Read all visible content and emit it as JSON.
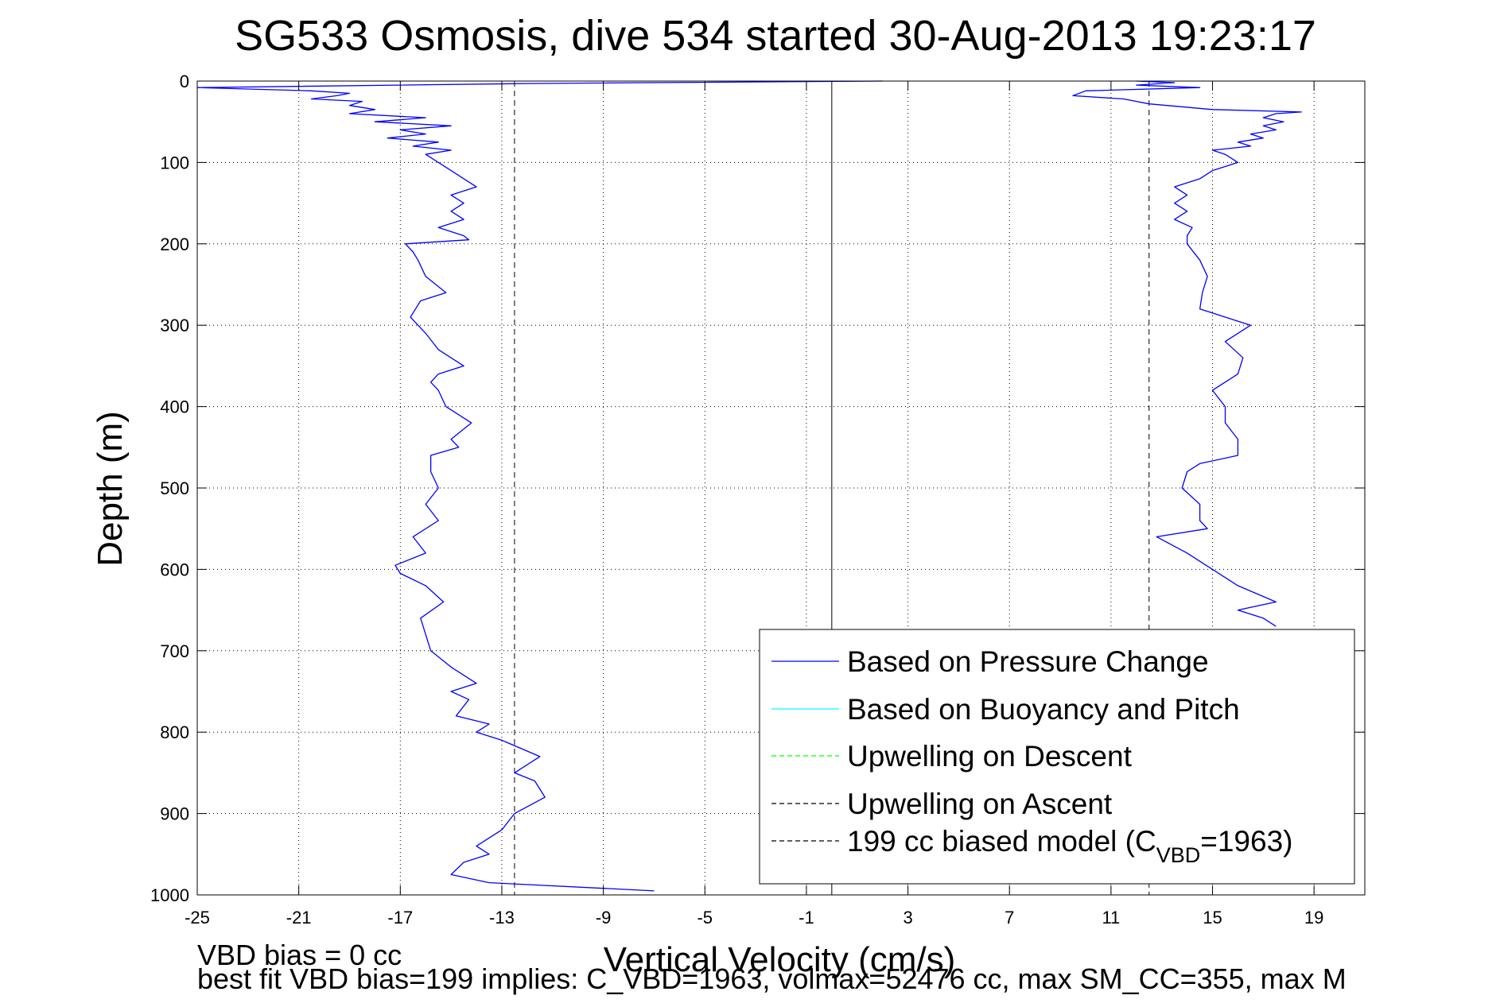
{
  "chart_data": {
    "type": "line",
    "title": "SG533 Osmosis, dive 534 started 30-Aug-2013 19:23:17",
    "xlabel": "Vertical Velocity (cm/s)",
    "ylabel": "Depth (m)",
    "xlim": [
      -25,
      21
    ],
    "ylim": [
      0,
      1000
    ],
    "y_reversed": true,
    "grid": true,
    "xticks": [
      -25,
      -21,
      -17,
      -13,
      -9,
      -5,
      -1,
      3,
      7,
      11,
      15,
      19
    ],
    "yticks": [
      0,
      100,
      200,
      300,
      400,
      500,
      600,
      700,
      800,
      900,
      1000
    ],
    "legend_position": "bottom-right",
    "legend": [
      {
        "label": "Based on Pressure Change",
        "color": "#0000ff",
        "dash": "solid"
      },
      {
        "label": "Based on Buoyancy and Pitch",
        "color": "#00ffff",
        "dash": "solid"
      },
      {
        "label": "Upwelling on Descent",
        "color": "#00ff00",
        "dash": "dashed"
      },
      {
        "label": "Upwelling on Ascent",
        "color": "#000000",
        "dash": "dashed"
      },
      {
        "label": "199 cc biased model (C",
        "sub": "VBD",
        "suffix": "=1963)",
        "color": "#000000",
        "dash": "dashed"
      }
    ],
    "reference_lines": [
      {
        "x": -12.5,
        "style": "dashed",
        "color": "#000000"
      },
      {
        "x": 0.0,
        "style": "solid",
        "color": "#000000"
      },
      {
        "x": 12.5,
        "style": "dashed",
        "color": "#000000"
      }
    ],
    "series": [
      {
        "name": "Based on Pressure Change",
        "color": "#0000ff",
        "segment": "descent",
        "depth": [
          0,
          3,
          8,
          12,
          15,
          18,
          22,
          25,
          30,
          35,
          40,
          45,
          50,
          55,
          60,
          65,
          70,
          75,
          80,
          85,
          90,
          100,
          110,
          120,
          130,
          140,
          150,
          160,
          170,
          180,
          190,
          195,
          200,
          210,
          220,
          240,
          260,
          270,
          280,
          290,
          300,
          310,
          330,
          350,
          360,
          370,
          380,
          400,
          420,
          440,
          450,
          460,
          480,
          500,
          520,
          540,
          560,
          580,
          595,
          605,
          620,
          640,
          660,
          680,
          700,
          720,
          740,
          750,
          760,
          780,
          790,
          800,
          810,
          830,
          850,
          860,
          880,
          900,
          920,
          940,
          950,
          960,
          975,
          985,
          995
        ],
        "x": [
          2.0,
          -12.0,
          -25.0,
          -20.5,
          -19.0,
          -19.5,
          -20.5,
          -18.5,
          -19.0,
          -18.0,
          -19.0,
          -16.0,
          -18.0,
          -15.0,
          -17.0,
          -16.0,
          -17.5,
          -15.5,
          -16.5,
          -15.0,
          -16.0,
          -15.5,
          -15.0,
          -14.5,
          -14.0,
          -15.0,
          -14.5,
          -15.0,
          -14.5,
          -15.5,
          -14.5,
          -14.3,
          -16.8,
          -16.5,
          -16.3,
          -16.0,
          -15.2,
          -16.2,
          -16.4,
          -16.6,
          -16.3,
          -16.0,
          -15.5,
          -14.5,
          -15.5,
          -15.8,
          -15.5,
          -15.2,
          -14.2,
          -15.0,
          -14.7,
          -15.8,
          -15.8,
          -15.5,
          -16.0,
          -15.5,
          -16.5,
          -16.0,
          -17.2,
          -17.0,
          -16.0,
          -15.3,
          -16.2,
          -16.0,
          -15.8,
          -15.0,
          -14.0,
          -15.0,
          -14.3,
          -14.8,
          -13.5,
          -14.0,
          -13.0,
          -11.5,
          -12.5,
          -11.7,
          -11.3,
          -12.5,
          -13.0,
          -14.0,
          -13.5,
          -14.5,
          -15.0,
          -13.5,
          -7.0
        ]
      },
      {
        "name": "Based on Pressure Change",
        "color": "#0000ff",
        "segment": "ascent",
        "depth": [
          0,
          2,
          5,
          8,
          12,
          18,
          22,
          28,
          35,
          38,
          40,
          45,
          50,
          55,
          60,
          65,
          70,
          75,
          80,
          85,
          90,
          100,
          110,
          120,
          130,
          140,
          150,
          160,
          170,
          180,
          190,
          200,
          220,
          240,
          260,
          280,
          300,
          320,
          340,
          360,
          380,
          400,
          420,
          440,
          460,
          470,
          480,
          500,
          520,
          540,
          550,
          560,
          580,
          600,
          620,
          640,
          650,
          660,
          670
        ],
        "x": [
          12.0,
          13.5,
          12.0,
          14.5,
          10.0,
          9.5,
          11.5,
          12.5,
          15.0,
          18.5,
          17.5,
          17.0,
          17.8,
          17.0,
          17.5,
          16.5,
          17.0,
          16.0,
          16.5,
          15.0,
          15.5,
          16.0,
          15.0,
          14.5,
          13.5,
          14.0,
          13.5,
          14.0,
          13.5,
          14.2,
          14.0,
          14.0,
          14.5,
          14.8,
          14.6,
          14.5,
          16.5,
          15.5,
          16.2,
          16.0,
          15.0,
          15.5,
          15.5,
          16.0,
          16.0,
          14.5,
          14.0,
          13.8,
          14.5,
          14.5,
          14.8,
          12.8,
          14.0,
          15.0,
          16.0,
          17.5,
          16.0,
          17.0,
          17.5
        ]
      }
    ]
  },
  "footnotes": {
    "line1": "VBD bias = 0 cc",
    "line2": "best fit VBD bias=199 implies: C_VBD=1963, volmax=52476 cc, max SM_CC=355, max M"
  }
}
